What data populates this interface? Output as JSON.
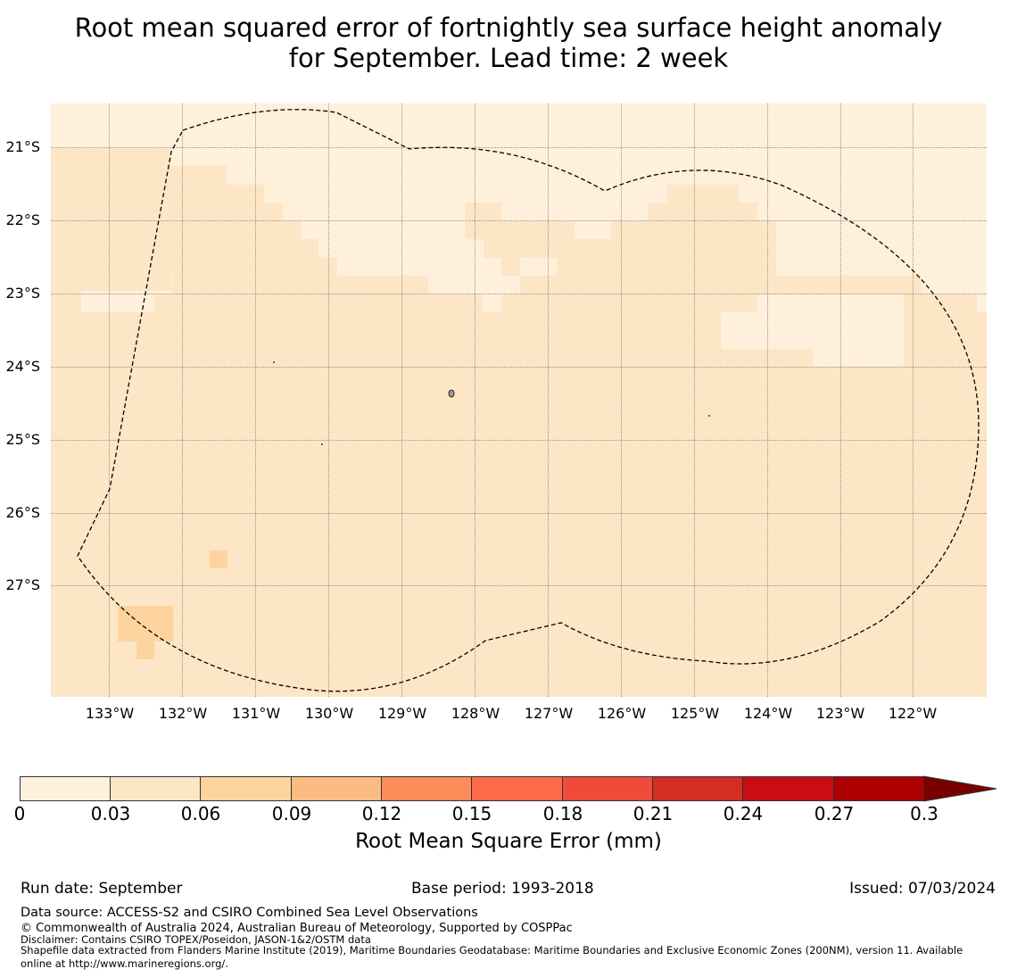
{
  "title": {
    "line1": "Root mean squared error of fortnightly sea surface height anomaly",
    "line2": "for September. Lead time: 2 week"
  },
  "map": {
    "lat_labels": [
      "21°S",
      "22°S",
      "23°S",
      "24°S",
      "25°S",
      "26°S",
      "27°S"
    ],
    "lon_labels": [
      "133°W",
      "132°W",
      "131°W",
      "130°W",
      "129°W",
      "128°W",
      "127°W",
      "126°W",
      "125°W",
      "124°W",
      "123°W",
      "122°W"
    ],
    "colors": {
      "background_band": "#fde6c6",
      "lowest_band": "#fff0dc",
      "mid_band": "#fdd49e",
      "boundary": "#000000"
    }
  },
  "colorbar": {
    "ticks": [
      "0",
      "0.03",
      "0.06",
      "0.09",
      "0.12",
      "0.15",
      "0.18",
      "0.21",
      "0.24",
      "0.27",
      "0.3"
    ],
    "colors": [
      "#fff0dc",
      "#fde6c6",
      "#fdd49e",
      "#fdbb84",
      "#fc8d59",
      "#fc6a4a",
      "#ef4b3b",
      "#d52c23",
      "#c80d14",
      "#ad0000",
      "#7a0000"
    ],
    "label": "Root Mean Square Error (mm)"
  },
  "footer": {
    "run_date": "Run date: September",
    "base_period": "Base period: 1993-2018",
    "issued": "Issued: 07/03/2024",
    "data_source": "Data source: ACCESS-S2 and CSIRO Combined Sea Level Observations",
    "copyright": "© Commonwealth of Australia 2024, Australian Bureau of Meteorology, Supported by COSPPac",
    "disclaimer": "Disclaimer: Contains CSIRO TOPEX/Poseidon, JASON-1&2/OSTM data",
    "shapefile_1": "Shapefile data extracted from Flanders Marine Institute (2019), Maritime Boundaries Geodatabase: Maritime Boundaries and Exclusive Economic Zones (200NM), version 11. Available",
    "shapefile_2": "online at http://www.marineregions.org/."
  }
}
